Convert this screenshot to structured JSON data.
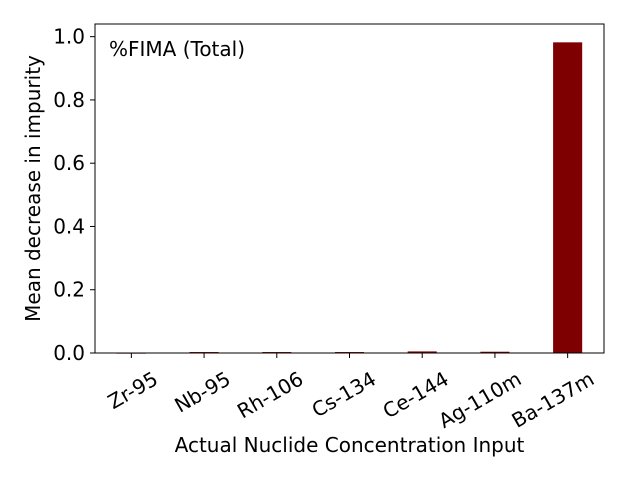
{
  "chart_data": {
    "type": "bar",
    "title": "",
    "annotation": "%FIMA (Total)",
    "xlabel": "Actual Nuclide Concentration Input",
    "ylabel": "Mean decrease in impurity",
    "categories": [
      "Zr-95",
      "Nb-95",
      "Rh-106",
      "Cs-134",
      "Ce-144",
      "Ag-110m",
      "Ba-137m"
    ],
    "values": [
      0.0005,
      0.003,
      0.003,
      0.003,
      0.005,
      0.004,
      0.982
    ],
    "ylim": [
      0,
      1.04
    ],
    "yticks": [
      0.0,
      0.2,
      0.4,
      0.6,
      0.8,
      1.0
    ],
    "ytick_labels": [
      "0.0",
      "0.2",
      "0.4",
      "0.6",
      "0.8",
      "1.0"
    ],
    "grid": false,
    "legend": "none",
    "bar_color": "#7f0000"
  }
}
